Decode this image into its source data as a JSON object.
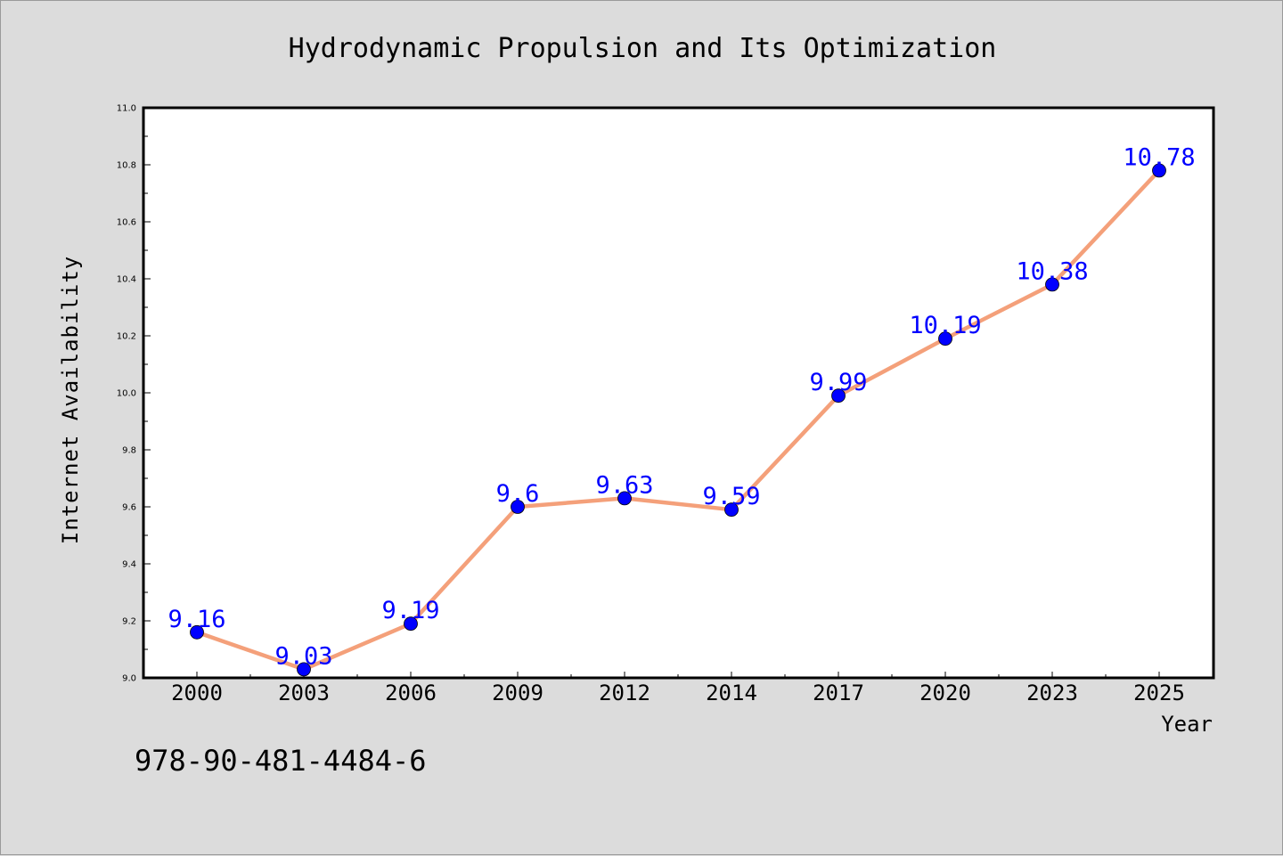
{
  "chart_data": {
    "type": "line",
    "title": "Hydrodynamic Propulsion and Its Optimization",
    "xlabel": "Year",
    "ylabel": "Internet Availability",
    "categories": [
      "2000",
      "2003",
      "2006",
      "2009",
      "2012",
      "2014",
      "2017",
      "2020",
      "2023",
      "2025"
    ],
    "values": [
      9.16,
      9.03,
      9.19,
      9.6,
      9.63,
      9.59,
      9.99,
      10.19,
      10.38,
      10.78
    ],
    "data_labels": [
      "9.16",
      "9.03",
      "9.19",
      "9.6",
      "9.63",
      "9.59",
      "9.99",
      "10.19",
      "10.38",
      "10.78"
    ],
    "ylim": [
      9.0,
      11.0
    ],
    "y_ticks": [
      "9.0",
      "9.2",
      "9.4",
      "9.6",
      "9.8",
      "10.0",
      "10.2",
      "10.4",
      "10.6",
      "10.8",
      "11.0"
    ],
    "grid": false,
    "legend": "none",
    "colors": {
      "line": "#f4a07a",
      "marker": "#0000ff",
      "label": "#0000ff",
      "background": "#dcdcdc",
      "plot_background": "#ffffff"
    }
  },
  "footer": {
    "isbn": "978-90-481-4484-6"
  }
}
